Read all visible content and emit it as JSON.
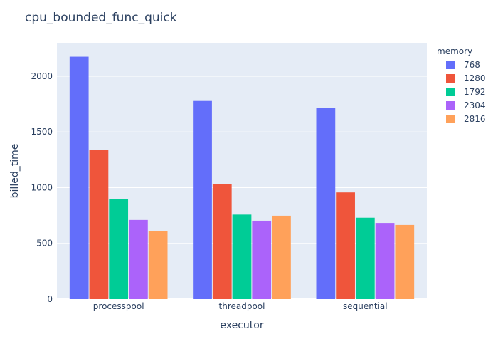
{
  "chart_data": {
    "type": "bar",
    "title": "cpu_bounded_func_quick",
    "xlabel": "executor",
    "ylabel": "billed_time",
    "categories": [
      "processpool",
      "threadpool",
      "sequential"
    ],
    "legend_title": "memory",
    "legend_position": "right",
    "grid": true,
    "ylim": [
      0,
      2300
    ],
    "yticks": [
      0,
      500,
      1000,
      1500,
      2000
    ],
    "series": [
      {
        "name": "768",
        "color": "#636efa",
        "values": [
          2175,
          1778,
          1713
        ]
      },
      {
        "name": "1280",
        "color": "#ef553b",
        "values": [
          1338,
          1035,
          957
        ]
      },
      {
        "name": "1792",
        "color": "#00cc96",
        "values": [
          895,
          758,
          730
        ]
      },
      {
        "name": "2304",
        "color": "#ab63fa",
        "values": [
          710,
          703,
          683
        ]
      },
      {
        "name": "2816",
        "color": "#ffa15a",
        "values": [
          612,
          748,
          665
        ]
      }
    ]
  }
}
